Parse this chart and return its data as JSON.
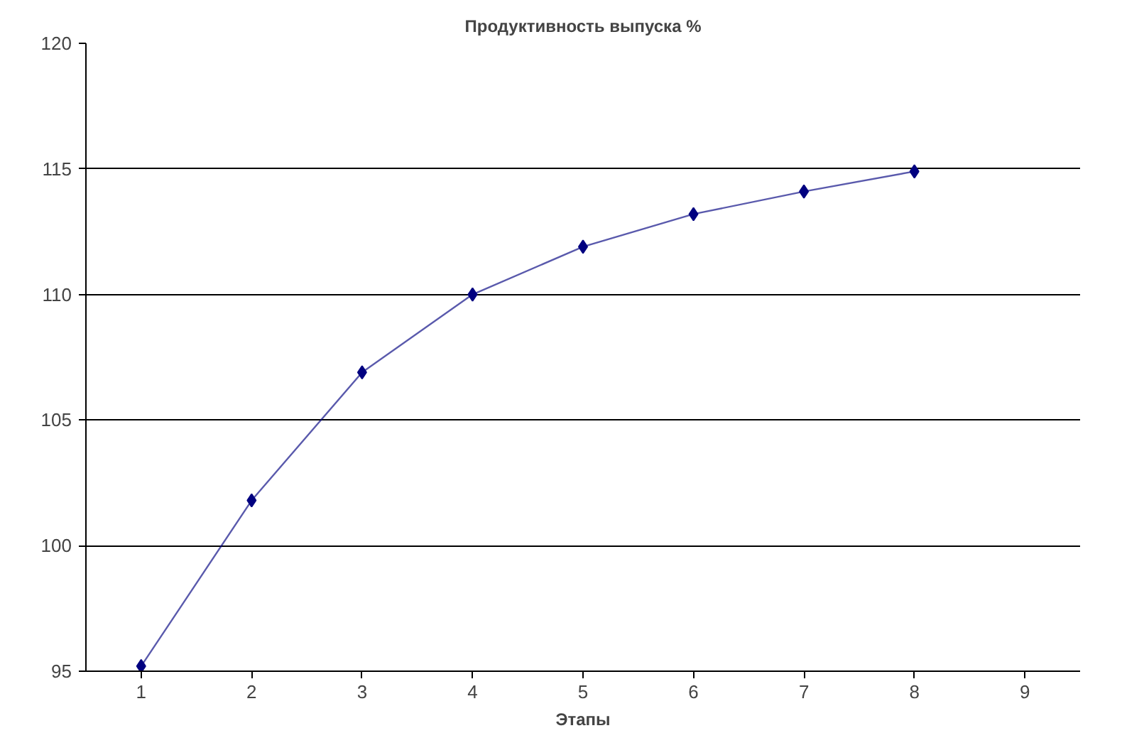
{
  "chart_data": {
    "type": "line",
    "title": "Продуктивность выпуска %",
    "xlabel": "Этапы",
    "categories": [
      "1",
      "2",
      "3",
      "4",
      "5",
      "6",
      "7",
      "8",
      "9"
    ],
    "series": [
      {
        "color": "#000080",
        "values": [
          95.2,
          101.8,
          106.9,
          110.0,
          111.9,
          113.2,
          114.1,
          114.9,
          null
        ]
      }
    ],
    "ylim": [
      95,
      120
    ],
    "yticks": [
      95,
      100,
      105,
      110,
      115,
      120
    ],
    "grid": "y",
    "marker": "diamond",
    "line_style": "solid"
  }
}
